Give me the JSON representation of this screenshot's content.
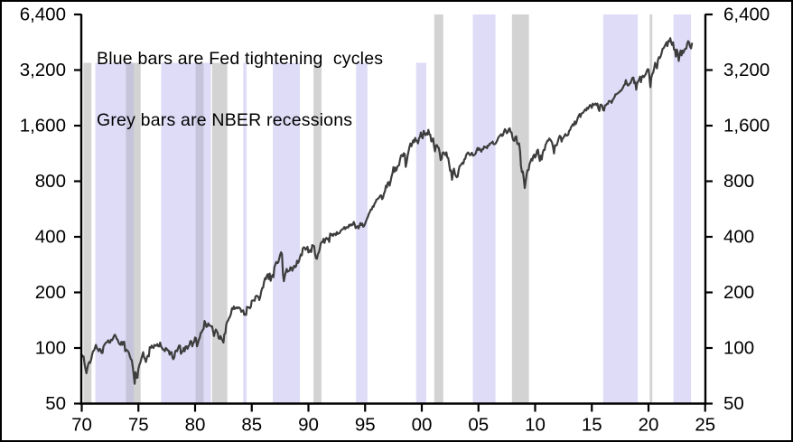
{
  "chart_data": {
    "type": "line",
    "y_scale": "log2",
    "xlim": [
      1970,
      2025
    ],
    "ylim": [
      50,
      6400
    ],
    "grid": false,
    "annotation": {
      "line1": "Blue bars are Fed tightening  cycles",
      "line2": "Grey bars are NBER recessions"
    },
    "y_ticks": [
      {
        "value": 6400,
        "label": "6,400"
      },
      {
        "value": 3200,
        "label": "3,200"
      },
      {
        "value": 1600,
        "label": "1,600"
      },
      {
        "value": 800,
        "label": "800"
      },
      {
        "value": 400,
        "label": "400"
      },
      {
        "value": 200,
        "label": "200"
      },
      {
        "value": 100,
        "label": "100"
      },
      {
        "value": 50,
        "label": "50"
      }
    ],
    "x_ticks": [
      {
        "year": 1970,
        "label": "70"
      },
      {
        "year": 1975,
        "label": "75"
      },
      {
        "year": 1980,
        "label": "80"
      },
      {
        "year": 1985,
        "label": "85"
      },
      {
        "year": 1990,
        "label": "90"
      },
      {
        "year": 1995,
        "label": "95"
      },
      {
        "year": 2000,
        "label": "00"
      },
      {
        "year": 2005,
        "label": "05"
      },
      {
        "year": 2010,
        "label": "10"
      },
      {
        "year": 2015,
        "label": "15"
      },
      {
        "year": 2020,
        "label": "20"
      },
      {
        "year": 2025,
        "label": "25"
      }
    ],
    "bands": {
      "fed_tightening": {
        "color": "#dedcf7",
        "periods": [
          {
            "start": 1971.2,
            "end": 1974.6,
            "top": 3500
          },
          {
            "start": 1977.0,
            "end": 1981.4,
            "top": 3500
          },
          {
            "start": 1984.25,
            "end": 1984.55,
            "top": 3500
          },
          {
            "start": 1986.85,
            "end": 1989.25,
            "top": 3500
          },
          {
            "start": 1994.2,
            "end": 1995.2,
            "top": 3500
          },
          {
            "start": 1999.5,
            "end": 2000.4,
            "top": 3500
          },
          {
            "start": 2004.5,
            "end": 2006.5,
            "top": 6400
          },
          {
            "start": 2016.0,
            "end": 2019.05,
            "top": 6400
          },
          {
            "start": 2022.2,
            "end": 2023.75,
            "top": 6400
          }
        ]
      },
      "nber_recessions": {
        "color": "#d3d3d3",
        "overlap_color": "#c6c4db",
        "periods": [
          {
            "start": 1970.15,
            "end": 1970.85,
            "top": 3500
          },
          {
            "start": 1973.9,
            "end": 1975.2,
            "top": 3500
          },
          {
            "start": 1980.05,
            "end": 1980.75,
            "top": 3500
          },
          {
            "start": 1981.5,
            "end": 1982.85,
            "top": 3500
          },
          {
            "start": 1990.45,
            "end": 1991.15,
            "top": 3500
          },
          {
            "start": 2001.1,
            "end": 2001.9,
            "top": 6400
          },
          {
            "start": 2007.95,
            "end": 2009.45,
            "top": 6400
          },
          {
            "start": 2020.1,
            "end": 2020.33,
            "top": 6400
          }
        ]
      }
    },
    "series": [
      {
        "color": "#3d3d3d",
        "x_start": 1970.0,
        "x_step_years": 0.0833333,
        "values": [
          92,
          90,
          90,
          82,
          77,
          73,
          78,
          82,
          84,
          83,
          87,
          92,
          96,
          97,
          100,
          104,
          100,
          98,
          96,
          99,
          98,
          94,
          94,
          102,
          104,
          106,
          107,
          108,
          110,
          107,
          107,
          111,
          110,
          112,
          116,
          118,
          116,
          112,
          111,
          107,
          105,
          104,
          108,
          104,
          108,
          108,
          96,
          98,
          97,
          96,
          94,
          90,
          87,
          86,
          79,
          72,
          64,
          74,
          69,
          69,
          77,
          81,
          83,
          87,
          91,
          95,
          89,
          87,
          84,
          89,
          91,
          90,
          101,
          100,
          103,
          101,
          100,
          104,
          103,
          103,
          105,
          102,
          102,
          107,
          102,
          100,
          98,
          98,
          96,
          100,
          99,
          97,
          97,
          92,
          95,
          95,
          89,
          87,
          89,
          96,
          97,
          96,
          100,
          103,
          103,
          93,
          95,
          96,
          100,
          96,
          102,
          102,
          99,
          102,
          104,
          109,
          109,
          102,
          106,
          108,
          114,
          113,
          102,
          106,
          111,
          114,
          121,
          122,
          125,
          127,
          140,
          136,
          130,
          131,
          136,
          133,
          132,
          131,
          131,
          123,
          116,
          122,
          126,
          123,
          120,
          113,
          112,
          116,
          112,
          110,
          107,
          119,
          120,
          134,
          139,
          141,
          145,
          148,
          153,
          164,
          162,
          168,
          163,
          164,
          166,
          164,
          166,
          165,
          163,
          157,
          159,
          160,
          151,
          153,
          151,
          167,
          166,
          166,
          164,
          167,
          180,
          181,
          181,
          180,
          190,
          192,
          191,
          189,
          182,
          190,
          202,
          211,
          212,
          227,
          239,
          236,
          247,
          251,
          236,
          253,
          231,
          244,
          249,
          242,
          274,
          284,
          292,
          288,
          290,
          304,
          319,
          330,
          322,
          252,
          230,
          247,
          257,
          268,
          259,
          261,
          262,
          274,
          272,
          262,
          272,
          279,
          274,
          278,
          297,
          289,
          295,
          310,
          321,
          318,
          346,
          351,
          349,
          340,
          346,
          353,
          329,
          332,
          340,
          331,
          361,
          358,
          356,
          323,
          306,
          304,
          322,
          330,
          344,
          367,
          375,
          375,
          390,
          371,
          388,
          395,
          388,
          392,
          375,
          417,
          409,
          413,
          404,
          415,
          415,
          408,
          424,
          414,
          418,
          419,
          431,
          436,
          439,
          443,
          452,
          440,
          450,
          451,
          448,
          464,
          459,
          468,
          462,
          466,
          482,
          467,
          446,
          451,
          457,
          444,
          458,
          475,
          463,
          472,
          454,
          459,
          470,
          487,
          501,
          515,
          533,
          545,
          562,
          562,
          584,
          582,
          605,
          616,
          636,
          640,
          646,
          654,
          669,
          671,
          640,
          652,
          687,
          705,
          757,
          741,
          786,
          791,
          757,
          801,
          848,
          885,
          954,
          899,
          947,
          915,
          955,
          970,
          980,
          1049,
          1102,
          1112,
          1091,
          1134,
          1121,
          957,
          1017,
          1099,
          1164,
          1229,
          1280,
          1238,
          1286,
          1335,
          1302,
          1373,
          1329,
          1320,
          1283,
          1363,
          1389,
          1469,
          1394,
          1366,
          1499,
          1452,
          1421,
          1455,
          1431,
          1518,
          1437,
          1429,
          1315,
          1320,
          1366,
          1240,
          1160,
          1249,
          1256,
          1224,
          1211,
          1134,
          1041,
          1060,
          1139,
          1148,
          1130,
          1107,
          1147,
          1077,
          1067,
          990,
          912,
          916,
          815,
          886,
          936,
          880,
          856,
          841,
          848,
          917,
          964,
          975,
          990,
          1008,
          996,
          1051,
          1058,
          1112,
          1131,
          1145,
          1126,
          1107,
          1121,
          1141,
          1102,
          1104,
          1114,
          1130,
          1174,
          1212,
          1181,
          1204,
          1181,
          1157,
          1192,
          1191,
          1234,
          1220,
          1229,
          1207,
          1249,
          1248,
          1280,
          1281,
          1295,
          1311,
          1270,
          1270,
          1277,
          1304,
          1336,
          1378,
          1401,
          1418,
          1438,
          1407,
          1421,
          1482,
          1531,
          1503,
          1455,
          1474,
          1527,
          1549,
          1481,
          1468,
          1379,
          1331,
          1323,
          1386,
          1400,
          1280,
          1267,
          1283,
          1166,
          969,
          896,
          903,
          826,
          735,
          798,
          873,
          919,
          919,
          987,
          1021,
          1057,
          1036,
          1096,
          1115,
          1074,
          1104,
          1169,
          1187,
          1089,
          1031,
          1102,
          1049,
          1141,
          1183,
          1181,
          1258,
          1286,
          1327,
          1326,
          1364,
          1345,
          1321,
          1292,
          1219,
          1131,
          1253,
          1247,
          1258,
          1312,
          1366,
          1408,
          1398,
          1310,
          1362,
          1379,
          1407,
          1441,
          1412,
          1416,
          1426,
          1498,
          1515,
          1569,
          1598,
          1631,
          1606,
          1686,
          1633,
          1682,
          1757,
          1806,
          1848,
          1783,
          1859,
          1872,
          1884,
          1924,
          1960,
          1931,
          2003,
          1972,
          2018,
          2068,
          2059,
          1995,
          2105,
          2068,
          2086,
          2107,
          2063,
          2104,
          1972,
          1920,
          2079,
          2080,
          2044,
          1940,
          1932,
          2060,
          2065,
          2097,
          2099,
          2174,
          2171,
          2168,
          2126,
          2199,
          2239,
          2279,
          2364,
          2363,
          2384,
          2412,
          2423,
          2470,
          2472,
          2519,
          2575,
          2648,
          2674,
          2824,
          2714,
          2641,
          2648,
          2705,
          2718,
          2816,
          2902,
          2914,
          2712,
          2760,
          2507,
          2704,
          2784,
          2834,
          2946,
          2752,
          2942,
          2980,
          2926,
          2977,
          3038,
          3141,
          3231,
          3226,
          2954,
          2585,
          2912,
          3044,
          3100,
          3271,
          3500,
          3363,
          3270,
          3622,
          3756,
          3714,
          3811,
          3973,
          4181,
          4204,
          4298,
          4395,
          4523,
          4308,
          4605,
          4567,
          4766,
          4516,
          4374,
          4530,
          4132,
          4132,
          3785,
          4130,
          3955,
          3586,
          3872,
          4080,
          3840,
          4077,
          3970,
          4109,
          4169,
          4180,
          4450,
          4589,
          4508,
          4288,
          4194,
          4450
        ]
      }
    ],
    "colors": {
      "axis": "#000000",
      "background": "#ffffff",
      "border": "#000000"
    }
  }
}
